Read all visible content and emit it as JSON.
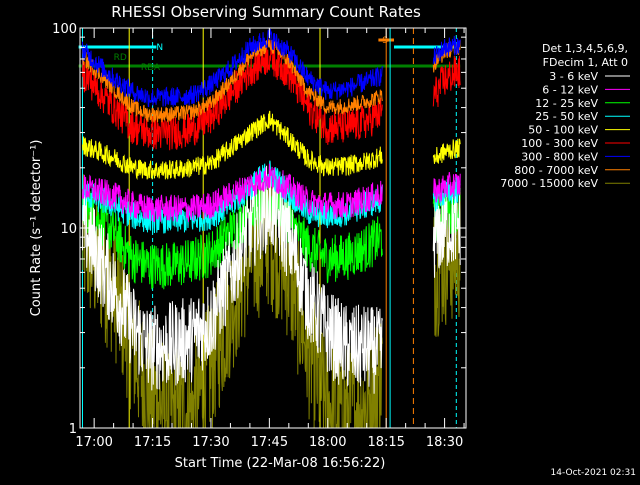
{
  "chart_data": {
    "type": "line",
    "title": "RHESSI Observing Summary Count Rates",
    "xlabel": "Start Time (22-Mar-08 16:56:22)",
    "ylabel": "Count Rate (s⁻¹ detector⁻¹)",
    "y_scale": "log",
    "ylim": [
      1,
      100
    ],
    "xlim": [
      "16:56:22",
      "18:35:30"
    ],
    "x_ticks": [
      "17:00",
      "17:15",
      "17:30",
      "17:45",
      "18:00",
      "18:15",
      "18:30"
    ],
    "y_ticks": [
      "1",
      "10",
      "100"
    ],
    "legend_header": [
      "Det 1,3,4,5,6,9,",
      "FDecim 1, Att 0"
    ],
    "legend_position": "right",
    "timestamp": "14-Oct-2021 02:31",
    "flags": [
      {
        "label": "N",
        "color": "#00ffff"
      },
      {
        "label": "SAA",
        "color": "#ff0000"
      },
      {
        "label": "RDA",
        "color": "#008000"
      },
      {
        "label": "RD",
        "color": "#008000"
      },
      {
        "label": "S",
        "color": "#ff8000"
      }
    ],
    "flag_intervals": [
      {
        "flag": "N",
        "start": "16:56",
        "end": "17:16"
      },
      {
        "flag": "N",
        "start": "18:17",
        "end": "18:34"
      },
      {
        "flag": "SAA",
        "start": "16:56",
        "end": "17:10"
      },
      {
        "flag": "SAA",
        "start": "17:29",
        "end": "17:40"
      },
      {
        "flag": "SAA",
        "start": "17:59",
        "end": "18:10"
      },
      {
        "flag": "RDA",
        "start": "16:56",
        "end": "18:34"
      },
      {
        "flag": "S",
        "start": "18:13",
        "end": "18:17"
      }
    ],
    "x": [
      "16:57",
      "17:05",
      "17:10",
      "17:14",
      "17:20",
      "17:25",
      "17:30",
      "17:35",
      "17:40",
      "17:45",
      "17:50",
      "17:55",
      "18:00",
      "18:05",
      "18:10",
      "18:14",
      "18:23",
      "18:27",
      "18:30",
      "18:33"
    ],
    "series": [
      {
        "name": "3 - 6 keV",
        "color": "#ffffff",
        "values": [
          10.5,
          5.0,
          3.2,
          2.5,
          2.6,
          2.8,
          3.5,
          6.0,
          10.0,
          13.0,
          9.0,
          4.5,
          3.0,
          2.5,
          2.5,
          2.4,
          null,
          9.0,
          10.0,
          10.5
        ]
      },
      {
        "name": "6 - 12 keV",
        "color": "#ff00ff",
        "values": [
          16.0,
          14.5,
          13.0,
          12.5,
          12.5,
          12.5,
          13.0,
          14.5,
          16.5,
          18.0,
          16.0,
          13.5,
          13.0,
          13.0,
          14.0,
          15.0,
          null,
          15.0,
          16.0,
          16.5
        ]
      },
      {
        "name": "12 - 25 keV",
        "color": "#00ff00",
        "values": [
          13.0,
          9.5,
          7.0,
          6.5,
          6.5,
          6.8,
          7.5,
          9.5,
          12.0,
          14.0,
          11.0,
          8.0,
          7.0,
          7.2,
          8.0,
          9.0,
          null,
          11.0,
          12.0,
          12.5
        ]
      },
      {
        "name": "25 - 50 keV",
        "color": "#00ffff",
        "values": [
          15.0,
          13.0,
          11.5,
          11.0,
          11.0,
          11.0,
          11.5,
          13.0,
          16.0,
          19.0,
          15.0,
          12.0,
          11.5,
          12.0,
          13.0,
          14.0,
          null,
          14.0,
          15.0,
          15.5
        ]
      },
      {
        "name": "50 - 100 keV",
        "color": "#ffff00",
        "values": [
          26.0,
          22.5,
          20.0,
          19.5,
          19.5,
          20.0,
          21.0,
          25.0,
          30.0,
          35.0,
          28.0,
          22.0,
          20.0,
          20.5,
          21.5,
          23.0,
          null,
          22.0,
          24.0,
          25.0
        ]
      },
      {
        "name": "100 - 300 keV",
        "color": "#ff0000",
        "values": [
          60.0,
          40.0,
          32.0,
          30.0,
          30.0,
          31.0,
          36.0,
          47.0,
          62.0,
          73.0,
          60.0,
          40.0,
          32.0,
          32.0,
          34.0,
          38.0,
          null,
          45.0,
          55.0,
          60.0
        ]
      },
      {
        "name": "300 - 800 keV",
        "color": "#0000ff",
        "values": [
          78.0,
          56.0,
          48.0,
          45.0,
          45.0,
          46.0,
          52.0,
          63.0,
          80.0,
          90.0,
          76.0,
          56.0,
          48.0,
          50.0,
          54.0,
          58.0,
          null,
          70.0,
          80.0,
          82.0
        ]
      },
      {
        "name": "800 - 7000 keV",
        "color": "#ff8000",
        "values": [
          72.0,
          50.0,
          40.0,
          37.0,
          37.0,
          38.0,
          42.0,
          54.0,
          72.0,
          84.0,
          68.0,
          48.0,
          40.0,
          41.0,
          43.0,
          46.0,
          null,
          65.0,
          76.0,
          80.0
        ]
      },
      {
        "name": "7000 - 15000 keV",
        "color": "#808000",
        "values": [
          8.5,
          5.0,
          2.5,
          1.5,
          1.2,
          1.2,
          2.0,
          4.0,
          7.0,
          9.0,
          6.0,
          2.5,
          1.3,
          1.2,
          1.3,
          2.0,
          null,
          6.0,
          7.0,
          7.5
        ]
      }
    ]
  }
}
